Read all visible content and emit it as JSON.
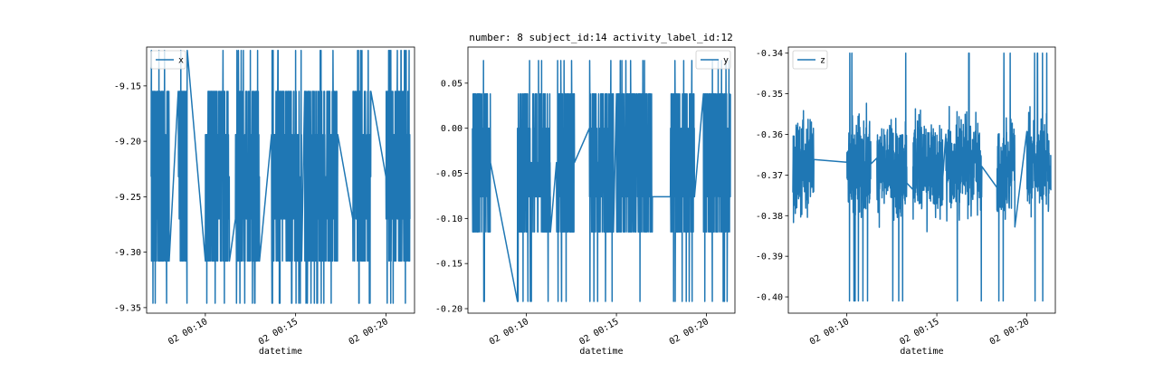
{
  "figure_title": "number: 8 subject_id:14 activity_label_id:12",
  "chart_data": [
    {
      "type": "line",
      "title": "",
      "xlabel": "datetime",
      "ylabel": "",
      "legend": "top-left",
      "grid": false,
      "line_color": "#1f77b4",
      "x_range": [
        "02 00:06:45",
        "02 00:21:35"
      ],
      "xticks": [
        "02 00:10",
        "02 00:15",
        "02 00:20"
      ],
      "ylim": [
        -9.355,
        -9.115
      ],
      "yticks": [
        -9.15,
        -9.2,
        -9.25,
        -9.3,
        -9.35
      ],
      "ytick_labels": [
        "-9.15",
        "-9.20",
        "-9.25",
        "-9.30",
        "-9.35"
      ],
      "series": [
        {
          "name": "x",
          "levels": [
            -9.155,
            -9.194,
            -9.232,
            -9.27,
            -9.308
          ],
          "min": -9.346,
          "max": -9.118,
          "segments": [
            {
              "start": "02 00:07:00",
              "end": "02 00:08:00"
            },
            {
              "start": "02 00:08:30",
              "end": "02 00:09:00"
            },
            {
              "start": "02 00:10:00",
              "end": "02 00:11:20"
            },
            {
              "start": "02 00:11:40",
              "end": "02 00:13:00"
            },
            {
              "start": "02 00:13:40",
              "end": "02 00:15:20"
            },
            {
              "start": "02 00:15:30",
              "end": "02 00:17:20"
            },
            {
              "start": "02 00:18:10",
              "end": "02 00:19:10"
            },
            {
              "start": "02 00:20:00",
              "end": "02 00:21:20"
            }
          ]
        }
      ]
    },
    {
      "type": "line",
      "title": "number: 8 subject_id:14 activity_label_id:12",
      "xlabel": "datetime",
      "ylabel": "",
      "legend": "top-right",
      "grid": false,
      "line_color": "#1f77b4",
      "x_range": [
        "02 00:06:45",
        "02 00:21:35"
      ],
      "xticks": [
        "02 00:10",
        "02 00:15",
        "02 00:20"
      ],
      "ylim": [
        -0.205,
        0.09
      ],
      "yticks": [
        0.05,
        0.0,
        -0.05,
        -0.1,
        -0.15,
        -0.2
      ],
      "ytick_labels": [
        "0.05",
        "0.00",
        "-0.05",
        "-0.10",
        "-0.15",
        "-0.20"
      ],
      "series": [
        {
          "name": "y",
          "levels": [
            0.038,
            0.0,
            -0.038,
            -0.076,
            -0.115
          ],
          "min": -0.192,
          "max": 0.075,
          "segments": [
            {
              "start": "02 00:07:00",
              "end": "02 00:08:00"
            },
            {
              "start": "02 00:09:30",
              "end": "02 00:11:20"
            },
            {
              "start": "02 00:11:40",
              "end": "02 00:12:40"
            },
            {
              "start": "02 00:13:30",
              "end": "02 00:14:50"
            },
            {
              "start": "02 00:15:00",
              "end": "02 00:17:00"
            },
            {
              "start": "02 00:18:00",
              "end": "02 00:19:20"
            },
            {
              "start": "02 00:19:50",
              "end": "02 00:21:20"
            }
          ]
        }
      ]
    },
    {
      "type": "line",
      "title": "",
      "xlabel": "datetime",
      "ylabel": "",
      "legend": "top-left",
      "grid": false,
      "line_color": "#1f77b4",
      "x_range": [
        "02 00:06:45",
        "02 00:21:35"
      ],
      "xticks": [
        "02 00:10",
        "02 00:15",
        "02 00:20"
      ],
      "ylim": [
        -0.404,
        -0.3385
      ],
      "yticks": [
        -0.34,
        -0.35,
        -0.36,
        -0.37,
        -0.38,
        -0.39,
        -0.4
      ],
      "ytick_labels": [
        "-0.34",
        "-0.35",
        "-0.36",
        "-0.37",
        "-0.38",
        "-0.39",
        "-0.40"
      ],
      "series": [
        {
          "name": "z",
          "center": -0.368,
          "spread": 0.008,
          "min": -0.401,
          "max": -0.34,
          "segments": [
            {
              "start": "02 00:07:00",
              "end": "02 00:08:10"
            },
            {
              "start": "02 00:10:00",
              "end": "02 00:11:20"
            },
            {
              "start": "02 00:11:40",
              "end": "02 00:13:20"
            },
            {
              "start": "02 00:13:40",
              "end": "02 00:15:20"
            },
            {
              "start": "02 00:15:30",
              "end": "02 00:17:30"
            },
            {
              "start": "02 00:18:20",
              "end": "02 00:19:20"
            },
            {
              "start": "02 00:20:00",
              "end": "02 00:21:20"
            }
          ]
        }
      ]
    }
  ]
}
